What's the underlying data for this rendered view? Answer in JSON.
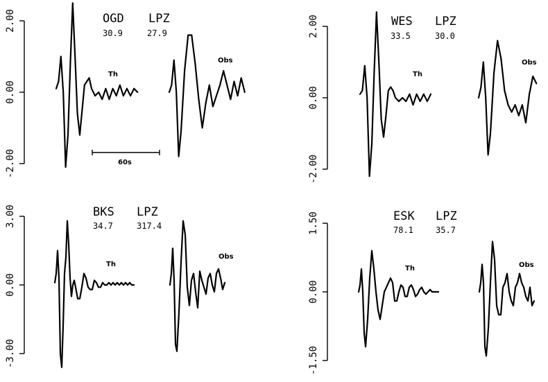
{
  "chart_data": [
    {
      "type": "line",
      "station": "OGD",
      "component": "LPZ",
      "value_left": "30.9",
      "value_right": "27.9",
      "ylim": [
        -2.6,
        2.6
      ],
      "ticks": [
        {
          "value": 2.0,
          "label": "2.00"
        },
        {
          "value": 0.0,
          "label": "0.00"
        },
        {
          "value": -2.0,
          "label": "-2.00"
        }
      ],
      "scale_bar_label": "60s",
      "series": [
        {
          "name": "Th",
          "x": [
            0,
            2,
            4,
            6,
            8,
            10,
            12,
            14,
            16,
            18,
            20,
            22,
            24,
            26,
            28,
            30,
            33,
            36,
            39,
            42,
            45,
            48,
            51,
            54,
            57,
            60,
            63,
            66,
            69
          ],
          "y": [
            0.1,
            0.3,
            1.0,
            0.0,
            -2.1,
            -1.2,
            0.8,
            2.5,
            1.0,
            -0.6,
            -1.2,
            -0.5,
            0.2,
            0.3,
            0.4,
            0.1,
            -0.1,
            0.0,
            -0.2,
            0.1,
            -0.2,
            0.1,
            -0.1,
            0.2,
            -0.1,
            0.1,
            -0.1,
            0.1,
            0.0
          ]
        },
        {
          "name": "Obs",
          "x": [
            0,
            2,
            4,
            6,
            8,
            10,
            13,
            16,
            19,
            22,
            25,
            28,
            31,
            34,
            37,
            40,
            43,
            46,
            49,
            52,
            55,
            58,
            61,
            64
          ],
          "y": [
            0.0,
            0.2,
            0.9,
            0.0,
            -1.8,
            -1.1,
            0.6,
            1.6,
            1.6,
            0.8,
            -0.2,
            -1.0,
            -0.3,
            0.2,
            -0.4,
            -0.1,
            0.2,
            0.6,
            0.2,
            -0.2,
            0.3,
            -0.1,
            0.4,
            0.0
          ]
        }
      ]
    },
    {
      "type": "line",
      "station": "WES",
      "component": "LPZ",
      "value_left": "33.5",
      "value_right": "30.0",
      "ylim": [
        -2.6,
        2.6
      ],
      "ticks": [
        {
          "value": 2.0,
          "label": "2.00"
        },
        {
          "value": 0.0,
          "label": "0.00"
        },
        {
          "value": -2.0,
          "label": "-2.00"
        }
      ],
      "series": [
        {
          "name": "Th",
          "x": [
            0,
            2,
            4,
            6,
            8,
            10,
            12,
            14,
            16,
            18,
            20,
            22,
            24,
            26,
            28,
            30,
            33,
            36,
            39,
            42,
            45,
            48,
            51,
            54,
            57,
            60
          ],
          "y": [
            0.1,
            0.2,
            0.9,
            0.0,
            -2.2,
            -1.3,
            0.7,
            2.4,
            1.0,
            -0.6,
            -1.1,
            -0.5,
            0.2,
            0.3,
            0.2,
            0.0,
            -0.1,
            0.0,
            -0.1,
            0.1,
            -0.2,
            0.1,
            -0.1,
            0.1,
            -0.1,
            0.1
          ]
        },
        {
          "name": "Obs",
          "x": [
            0,
            2,
            4,
            6,
            8,
            10,
            13,
            16,
            19,
            22,
            25,
            28,
            31,
            34,
            37,
            40,
            43,
            46,
            49
          ],
          "y": [
            0.0,
            0.3,
            1.0,
            0.0,
            -1.6,
            -1.0,
            0.7,
            1.6,
            1.1,
            0.2,
            -0.2,
            -0.4,
            -0.2,
            -0.5,
            -0.2,
            -0.7,
            0.1,
            0.6,
            0.4
          ]
        }
      ]
    },
    {
      "type": "line",
      "station": "BKS",
      "component": "LPZ",
      "value_left": "34.7",
      "value_right": "317.4",
      "ylim": [
        -3.9,
        3.9
      ],
      "ticks": [
        {
          "value": 3.0,
          "label": "3.00"
        },
        {
          "value": 0.0,
          "label": "0.00"
        },
        {
          "value": -3.0,
          "label": "-3.00"
        }
      ],
      "series": [
        {
          "name": "Th",
          "x": [
            0,
            2,
            4,
            6,
            8,
            10,
            12,
            14,
            16,
            18,
            20,
            22,
            24,
            26,
            28,
            30,
            33,
            36,
            39,
            42,
            45,
            48,
            51,
            54,
            57,
            60,
            63,
            66,
            69,
            72,
            75,
            78,
            81,
            84,
            87,
            90,
            93,
            96,
            99,
            102,
            105,
            108,
            111,
            114
          ],
          "y": [
            0.1,
            0.5,
            1.5,
            0.3,
            -3.0,
            -3.6,
            -1.8,
            0.5,
            1.2,
            2.8,
            1.8,
            0.3,
            -0.5,
            0.0,
            0.2,
            -0.1,
            -0.6,
            -0.6,
            -0.1,
            0.5,
            0.3,
            -0.1,
            -0.2,
            -0.2,
            0.2,
            0.1,
            -0.1,
            -0.1,
            0.1,
            0.0,
            0.0,
            0.1,
            0.0,
            0.1,
            0.0,
            0.1,
            0.0,
            0.1,
            0.0,
            0.1,
            0.0,
            0.1,
            0.0,
            0.0
          ]
        },
        {
          "name": "Obs",
          "x": [
            0,
            2,
            4,
            6,
            8,
            10,
            13,
            16,
            19,
            22,
            25,
            28,
            31,
            34,
            37,
            40,
            43,
            46,
            49,
            52,
            55,
            58,
            61,
            64,
            67,
            70,
            73,
            76,
            79
          ],
          "y": [
            0.0,
            0.5,
            1.6,
            0.2,
            -2.6,
            -2.9,
            -1.2,
            1.0,
            2.8,
            2.2,
            -0.1,
            -0.9,
            0.2,
            0.5,
            -0.3,
            -1.0,
            0.6,
            0.2,
            -0.1,
            -0.4,
            0.3,
            0.5,
            0.0,
            -0.3,
            0.5,
            0.7,
            0.3,
            -0.2,
            0.1
          ]
        }
      ]
    },
    {
      "type": "line",
      "station": "ESK",
      "component": "LPZ",
      "value_left": "78.1",
      "value_right": "35.7",
      "ylim": [
        -1.95,
        1.95
      ],
      "ticks": [
        {
          "value": 1.5,
          "label": "1.50"
        },
        {
          "value": 0.0,
          "label": "0.00"
        },
        {
          "value": -1.5,
          "label": "-1.50"
        }
      ],
      "series": [
        {
          "name": "Th",
          "x": [
            0,
            2,
            4,
            6,
            8,
            10,
            13,
            16,
            19,
            22,
            25,
            28,
            31,
            34,
            37,
            40,
            43,
            46,
            49,
            52,
            55,
            58,
            61,
            64,
            67,
            70,
            73,
            76,
            79,
            82,
            85,
            88,
            91,
            94,
            97,
            100,
            103,
            106,
            109,
            112,
            115
          ],
          "y": [
            0.0,
            0.15,
            0.5,
            0.0,
            -0.9,
            -1.2,
            -0.6,
            0.3,
            0.9,
            0.5,
            0.0,
            -0.4,
            -0.6,
            -0.3,
            0.0,
            0.1,
            0.2,
            0.3,
            0.2,
            -0.2,
            -0.2,
            0.0,
            0.15,
            0.1,
            -0.1,
            -0.1,
            0.1,
            0.15,
            0.05,
            -0.1,
            -0.05,
            0.05,
            0.1,
            0.0,
            -0.05,
            0.0,
            0.05,
            0.0,
            0.0,
            0.0,
            0.0
          ]
        },
        {
          "name": "Obs",
          "x": [
            0,
            2,
            4,
            6,
            8,
            10,
            13,
            16,
            19,
            22,
            25,
            28,
            31,
            34,
            37,
            40,
            43,
            46,
            49,
            52,
            55,
            58,
            61,
            64,
            67,
            70,
            73,
            76,
            79
          ],
          "y": [
            0.0,
            0.2,
            0.6,
            0.2,
            -1.2,
            -1.4,
            -0.8,
            0.2,
            1.1,
            0.7,
            -0.3,
            -0.5,
            -0.5,
            0.1,
            0.2,
            0.4,
            0.0,
            -0.2,
            -0.3,
            0.1,
            0.2,
            0.4,
            0.2,
            0.1,
            -0.1,
            -0.2,
            0.1,
            -0.3,
            -0.2
          ]
        }
      ]
    }
  ]
}
